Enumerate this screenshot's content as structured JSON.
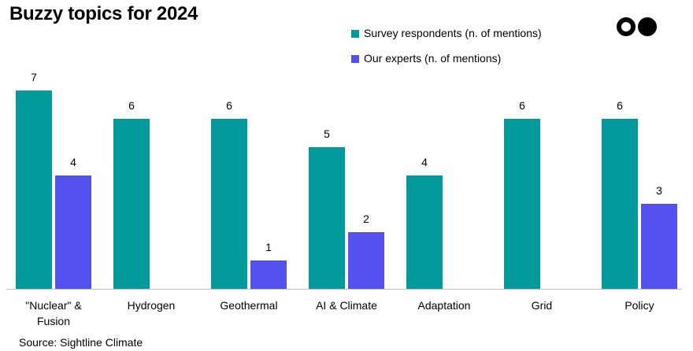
{
  "title": "Buzzy topics for 2024",
  "source": "Source: Sightline Climate",
  "logo": {
    "icon": "two-dots-logo"
  },
  "legend": [
    {
      "label": "Survey respondents (n. of mentions)",
      "color": "#019B9B"
    },
    {
      "label": "Our experts (n. of mentions)",
      "color": "#5551EE"
    }
  ],
  "chart_data": {
    "type": "bar",
    "title": "Buzzy topics for 2024",
    "xlabel": "",
    "ylabel": "",
    "ylim": [
      0,
      7
    ],
    "grid": false,
    "legend_position": "top-right",
    "categories": [
      [
        "\"Nuclear\" &",
        "Fusion"
      ],
      [
        "Hydrogen"
      ],
      [
        "Geothermal"
      ],
      [
        "AI & Climate"
      ],
      [
        "Adaptation"
      ],
      [
        "Grid"
      ],
      [
        "Policy"
      ]
    ],
    "series": [
      {
        "name": "Survey respondents (n. of mentions)",
        "color": "#019B9B",
        "values": [
          7,
          6,
          6,
          5,
          4,
          6,
          6
        ]
      },
      {
        "name": "Our experts (n. of mentions)",
        "color": "#5551EE",
        "values": [
          4,
          null,
          1,
          2,
          null,
          null,
          3
        ]
      }
    ]
  }
}
